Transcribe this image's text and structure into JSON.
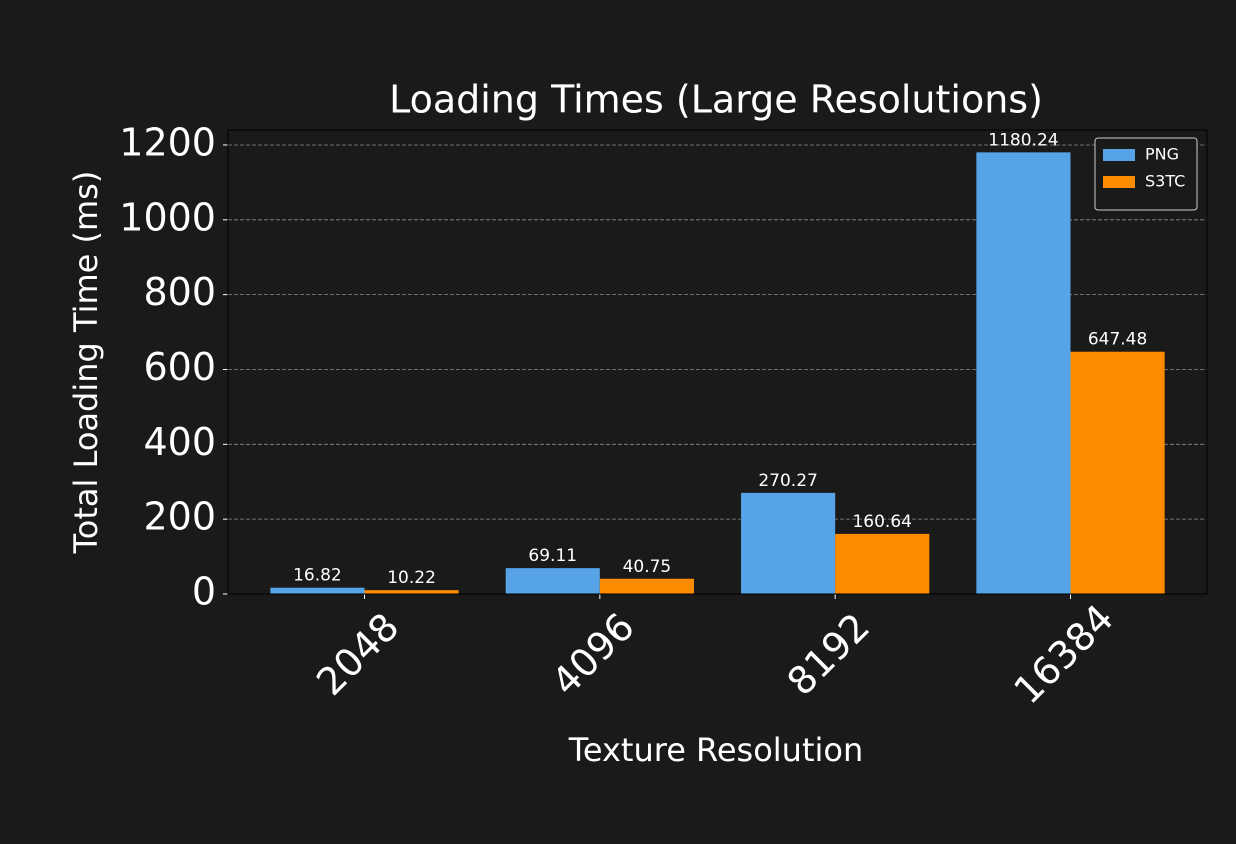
{
  "chart_data": {
    "type": "bar",
    "title": "Loading Times (Large Resolutions)",
    "x_label": "Texture Resolution",
    "y_label": "Total Loading Time (ms)",
    "categories": [
      "2048",
      "4096",
      "8192",
      "16384"
    ],
    "series": [
      {
        "name": "PNG",
        "color": "#56a3e8",
        "values": [
          16.82,
          69.11,
          270.27,
          1180.24
        ]
      },
      {
        "name": "S3TC",
        "color": "#ff8c00",
        "values": [
          10.22,
          40.75,
          160.64,
          647.48
        ]
      }
    ],
    "ylim": [
      0,
      1240
    ],
    "yticks": [
      0,
      200,
      400,
      600,
      800,
      1000,
      1200
    ],
    "grid": true,
    "legend": "upper right"
  }
}
